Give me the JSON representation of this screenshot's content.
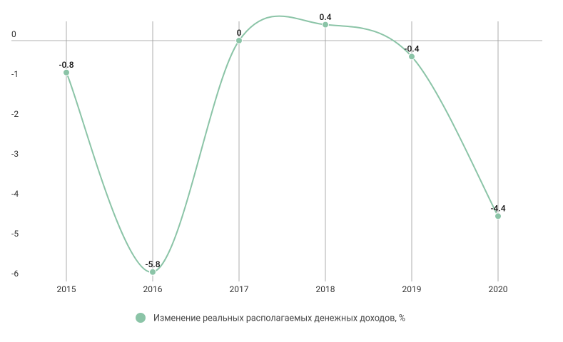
{
  "chart_data": {
    "type": "line",
    "categories": [
      "2015",
      "2016",
      "2017",
      "2018",
      "2019",
      "2020"
    ],
    "series": [
      {
        "name": "Изменение реальных располагаемых денежных доходов, %",
        "color": "#8bc4a7",
        "values": [
          -0.8,
          -5.8,
          0,
          0.4,
          -0.4,
          -4.4
        ]
      }
    ],
    "ylim": [
      -6.1,
      0.65
    ],
    "yticks": [
      0,
      -1,
      -2,
      -3,
      -4,
      -5,
      -6
    ],
    "grid": "x",
    "smooth": true,
    "legend": "bottom"
  }
}
